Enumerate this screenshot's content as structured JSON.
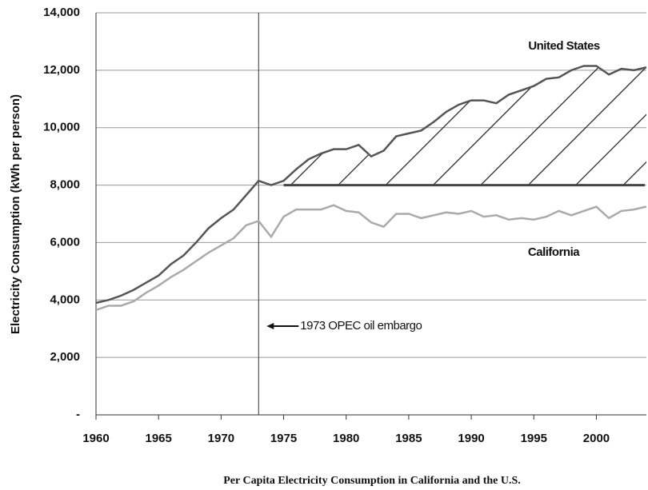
{
  "chart_data": {
    "type": "line",
    "title": "Per Capita Electricity Consumption in California and the U.S.",
    "y_label": "Electricity Consumption (kWh per person)",
    "x": [
      1960,
      1961,
      1962,
      1963,
      1964,
      1965,
      1966,
      1967,
      1968,
      1969,
      1970,
      1971,
      1972,
      1973,
      1974,
      1975,
      1976,
      1977,
      1978,
      1979,
      1980,
      1981,
      1982,
      1983,
      1984,
      1985,
      1986,
      1987,
      1988,
      1989,
      1990,
      1991,
      1992,
      1993,
      1994,
      1995,
      1996,
      1997,
      1998,
      1999,
      2000,
      2001,
      2002,
      2003,
      2004
    ],
    "series": [
      {
        "name": "United States",
        "color": "#555555",
        "values": [
          3900,
          4000,
          4150,
          4350,
          4600,
          4850,
          5250,
          5550,
          6000,
          6500,
          6850,
          7150,
          7650,
          8150,
          8000,
          8150,
          8550,
          8900,
          9100,
          9250,
          9250,
          9400,
          9000,
          9200,
          9700,
          9800,
          9900,
          10200,
          10550,
          10800,
          10950,
          10950,
          10850,
          11150,
          11300,
          11450,
          11700,
          11750,
          12000,
          12150,
          12150,
          11850,
          12050,
          12000,
          12100
        ]
      },
      {
        "name": "California",
        "color": "#aaaaaa",
        "values": [
          3650,
          3800,
          3800,
          3950,
          4250,
          4500,
          4800,
          5050,
          5350,
          5650,
          5900,
          6150,
          6600,
          6750,
          6200,
          6900,
          7150,
          7150,
          7150,
          7300,
          7100,
          7050,
          6700,
          6550,
          7000,
          7000,
          6850,
          6950,
          7050,
          7000,
          7100,
          6900,
          6950,
          6800,
          6850,
          6800,
          6900,
          7100,
          6950,
          7100,
          7250,
          6850,
          7100,
          7150,
          7250
        ]
      }
    ],
    "xlim": [
      1960,
      2004
    ],
    "xticks": [
      1960,
      1965,
      1970,
      1975,
      1980,
      1985,
      1990,
      1995,
      2000
    ],
    "ylim": [
      0,
      14000
    ],
    "yticks": [
      {
        "value": 0,
        "label": "-"
      },
      {
        "value": 2000,
        "label": "2,000"
      },
      {
        "value": 4000,
        "label": "4,000"
      },
      {
        "value": 6000,
        "label": "6,000"
      },
      {
        "value": 8000,
        "label": "8,000"
      },
      {
        "value": 10000,
        "label": "10,000"
      },
      {
        "value": 12000,
        "label": "12,000"
      },
      {
        "value": 14000,
        "label": "14,000"
      }
    ],
    "grid": true,
    "reference_x": 1973,
    "reference_y": 8000,
    "reference_y_start": 1975,
    "annotation": "1973 OPEC oil embargo"
  }
}
